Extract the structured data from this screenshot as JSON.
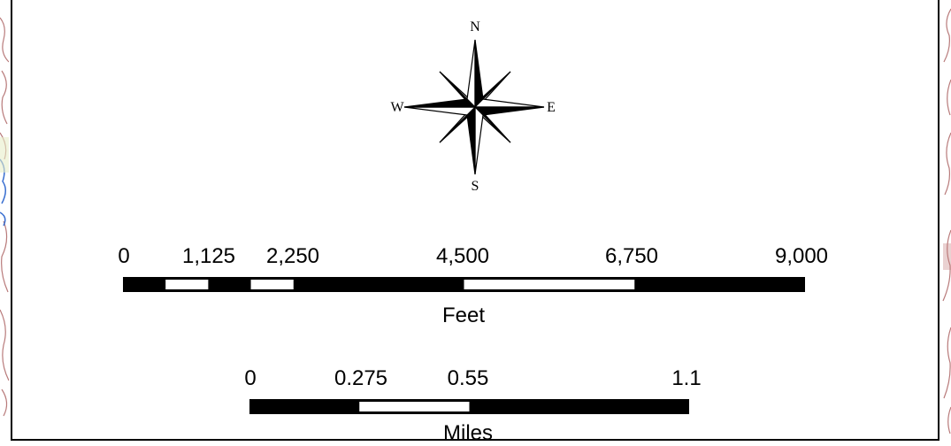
{
  "compass": {
    "north": "N",
    "south": "S",
    "east": "E",
    "west": "W"
  },
  "scale_bars": [
    {
      "unit": "Feet",
      "ticks": [
        "0",
        "1,125",
        "2,250",
        "4,500",
        "6,750",
        "9,000"
      ],
      "tick_values": [
        0,
        1125,
        2250,
        4500,
        6750,
        9000
      ],
      "max": 9000
    },
    {
      "unit": "Miles",
      "ticks": [
        "0",
        "0.275",
        "0.55",
        "1.1"
      ],
      "tick_values": [
        0,
        0.275,
        0.55,
        1.1
      ],
      "max": 1.1
    }
  ],
  "colors": {
    "ink": "#000000",
    "paper": "#ffffff",
    "map_lines": "#b87a7a",
    "water": "#3a6fd0"
  }
}
